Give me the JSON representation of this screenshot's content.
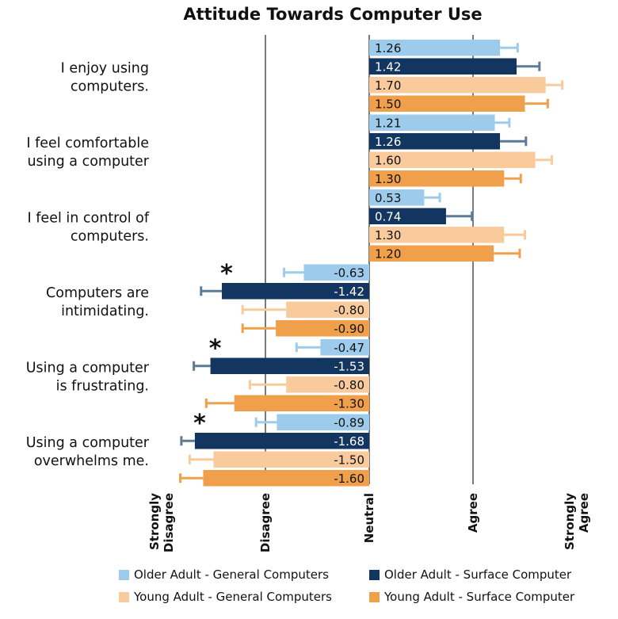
{
  "chart_data": {
    "type": "bar",
    "orientation": "horizontal",
    "title": "Attitude Towards Computer Use",
    "categories": [
      "I enjoy using computers.",
      "I feel comfortable using a computer",
      "I feel in control of computers.",
      "Computers are intimidating.",
      "Using a computer is frustrating.",
      "Using a computer overwhelms me."
    ],
    "category_lines": [
      [
        "I enjoy using",
        "computers."
      ],
      [
        "I feel comfortable",
        "using a computer"
      ],
      [
        "I feel in control of",
        "computers."
      ],
      [
        "Computers are",
        "intimidating."
      ],
      [
        "Using a computer",
        "is frustrating."
      ],
      [
        "Using a computer",
        "overwhelms me."
      ]
    ],
    "series": [
      {
        "name": "Older Adult - General Computers",
        "color": "#9ccbeb",
        "label_color": "#111111",
        "values": [
          1.26,
          1.21,
          0.53,
          -0.63,
          -0.47,
          -0.89
        ],
        "errors": [
          0.17,
          0.14,
          0.15,
          0.19,
          0.23,
          0.2
        ],
        "labels": [
          "1.26",
          "1.21",
          "0.53",
          "-0.63",
          "-0.47",
          "-0.89"
        ]
      },
      {
        "name": "Older Adult - Surface Computer",
        "color": "#133660",
        "label_color": "#ffffff",
        "values": [
          1.42,
          1.26,
          0.74,
          -1.42,
          -1.53,
          -1.68
        ],
        "errors": [
          0.22,
          0.25,
          0.25,
          0.2,
          0.16,
          0.13
        ],
        "labels": [
          "1.42",
          "1.26",
          "0.74",
          "-1.42",
          "-1.53",
          "-1.68"
        ]
      },
      {
        "name": "Young Adult - General Computers",
        "color": "#f9cb9c",
        "label_color": "#111111",
        "values": [
          1.7,
          1.6,
          1.3,
          -0.8,
          -0.8,
          -1.5
        ],
        "errors": [
          0.16,
          0.16,
          0.2,
          0.42,
          0.35,
          0.23
        ],
        "labels": [
          "1.70",
          "1.60",
          "1.30",
          "-0.80",
          "-0.80",
          "-1.50"
        ]
      },
      {
        "name": "Young Adult - Surface Computer",
        "color": "#f0a04b",
        "label_color": "#111111",
        "values": [
          1.5,
          1.3,
          1.2,
          -0.9,
          -1.3,
          -1.6
        ],
        "errors": [
          0.22,
          0.16,
          0.25,
          0.32,
          0.27,
          0.22
        ],
        "labels": [
          "1.50",
          "1.30",
          "1.20",
          "-0.90",
          "-1.30",
          "-1.60"
        ]
      }
    ],
    "significance_marker": "*",
    "significant": [
      {
        "category": 3,
        "series": 1
      },
      {
        "category": 4,
        "series": 1
      },
      {
        "category": 5,
        "series": 1
      }
    ],
    "xlim": [
      -2,
      2
    ],
    "x_ticks": [
      {
        "value": -2,
        "lines": [
          "Strongly",
          "Disagree"
        ]
      },
      {
        "value": -1,
        "lines": [
          "Disagree"
        ]
      },
      {
        "value": 0,
        "lines": [
          "Neutral"
        ]
      },
      {
        "value": 1,
        "lines": [
          "Agree"
        ]
      },
      {
        "value": 2,
        "lines": [
          "Strongly",
          "Agree"
        ]
      }
    ],
    "reference_lines": [
      -1,
      0,
      1
    ],
    "legend_position": "bottom"
  }
}
